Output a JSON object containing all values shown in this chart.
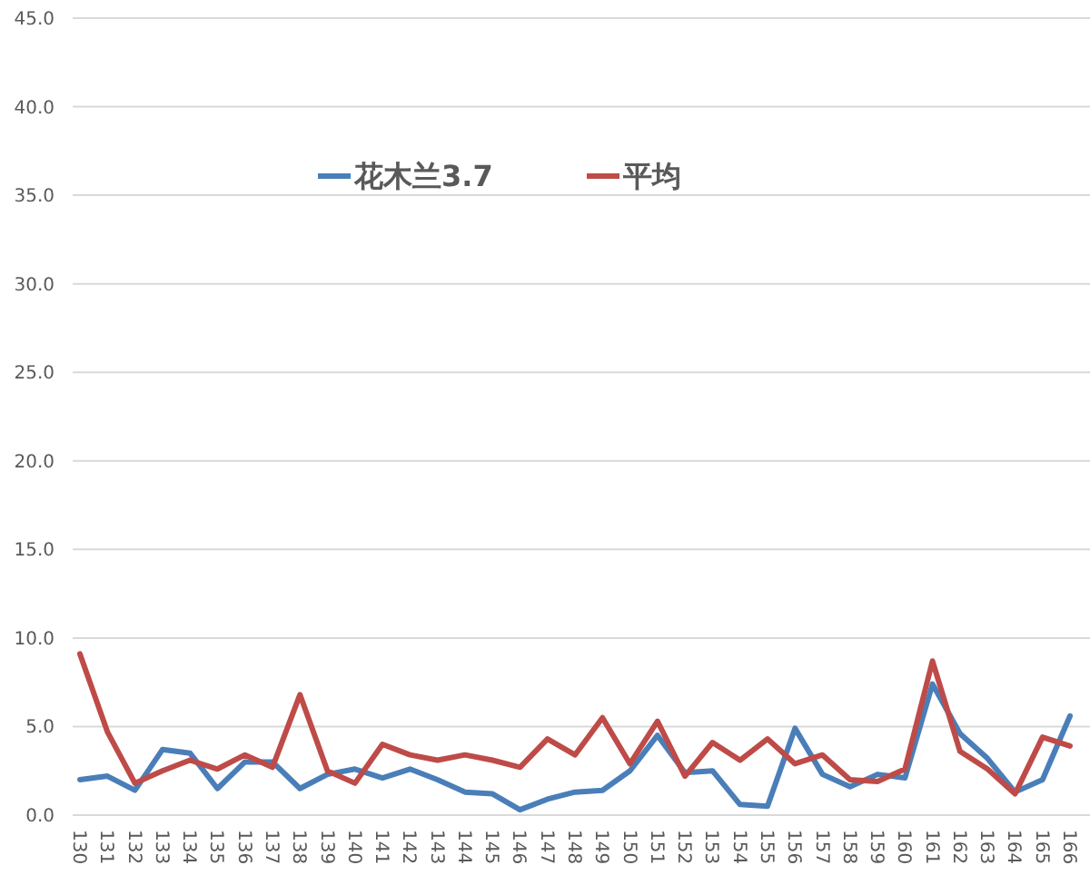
{
  "chart_data": {
    "type": "line",
    "categories": [
      "130",
      "131",
      "132",
      "133",
      "134",
      "135",
      "136",
      "137",
      "138",
      "139",
      "140",
      "141",
      "142",
      "143",
      "144",
      "145",
      "146",
      "147",
      "148",
      "149",
      "150",
      "151",
      "152",
      "153",
      "154",
      "155",
      "156",
      "157",
      "158",
      "159",
      "160",
      "161",
      "162",
      "163",
      "164",
      "165",
      "166"
    ],
    "series": [
      {
        "name": "花木兰3.7",
        "color": "#4a7eb8",
        "values": [
          2.0,
          2.2,
          1.4,
          3.7,
          3.5,
          1.5,
          3.0,
          3.0,
          1.5,
          2.3,
          2.6,
          2.1,
          2.6,
          2.0,
          1.3,
          1.2,
          0.3,
          0.9,
          1.3,
          1.4,
          2.5,
          4.5,
          2.4,
          2.5,
          0.6,
          0.5,
          4.9,
          2.3,
          1.6,
          2.3,
          2.1,
          7.4,
          4.6,
          3.2,
          1.3,
          2.0,
          5.6
        ]
      },
      {
        "name": "平均",
        "color": "#be4b48",
        "values": [
          9.1,
          4.7,
          1.8,
          2.5,
          3.1,
          2.6,
          3.4,
          2.7,
          6.8,
          2.5,
          1.8,
          4.0,
          3.4,
          3.1,
          3.4,
          3.1,
          2.7,
          4.3,
          3.4,
          5.5,
          2.9,
          5.3,
          2.2,
          4.1,
          3.1,
          4.3,
          2.9,
          3.4,
          2.0,
          1.9,
          2.6,
          8.7,
          3.6,
          2.6,
          1.2,
          4.4,
          3.9
        ]
      }
    ],
    "ylim": [
      0,
      45
    ],
    "yticks": [
      {
        "value": 0,
        "label": "0.0"
      },
      {
        "value": 5,
        "label": "5.0"
      },
      {
        "value": 10,
        "label": "10.0"
      },
      {
        "value": 15,
        "label": "15.0"
      },
      {
        "value": 20,
        "label": "20.0"
      },
      {
        "value": 25,
        "label": "25.0"
      },
      {
        "value": 30,
        "label": "30.0"
      },
      {
        "value": 35,
        "label": "35.0"
      },
      {
        "value": 40,
        "label": "40.0"
      },
      {
        "value": 45,
        "label": "45.0"
      }
    ],
    "grid": "y",
    "legend": "top left",
    "marker": "none",
    "line_style": "solid"
  }
}
